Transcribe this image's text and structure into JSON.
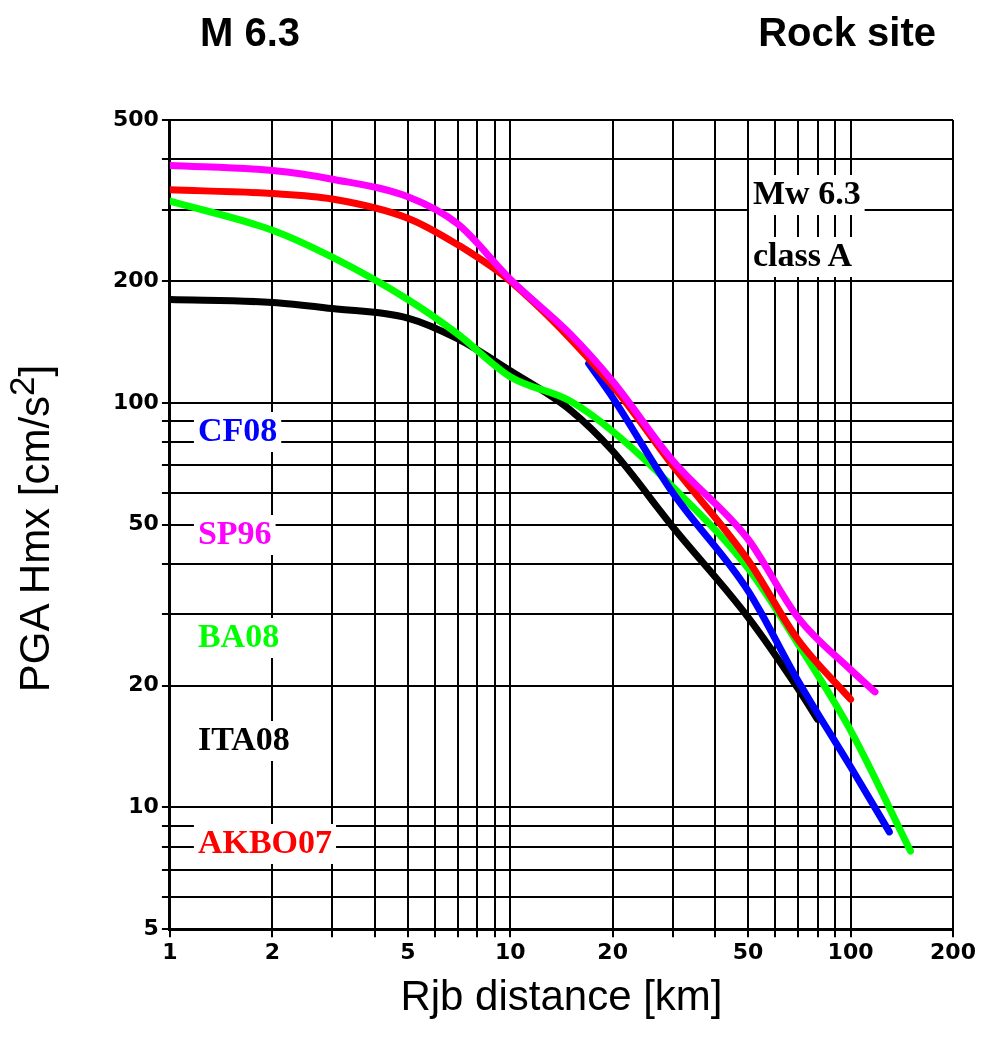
{
  "chart_data": {
    "type": "line",
    "title": "M 6.3",
    "subtitle": "Rock site",
    "xlabel": "Rjb distance [km]",
    "ylabel": "PGA Hmx [cm/s$^{2}$]",
    "log": "xy",
    "grid": true,
    "legend": false,
    "marker": "none",
    "line_style": "solid",
    "xlim": [
      1,
      200
    ],
    "ylim": [
      5,
      500
    ],
    "xticks": [
      1,
      2,
      {
        "value": 3,
        "label": null
      },
      {
        "value": 4,
        "label": null
      },
      5,
      {
        "value": 6,
        "label": null
      },
      {
        "value": 7,
        "label": null
      },
      {
        "value": 8,
        "label": null
      },
      {
        "value": 9,
        "label": null
      },
      10,
      20,
      {
        "value": 30,
        "label": null
      },
      {
        "value": 40,
        "label": null
      },
      50,
      {
        "value": 60,
        "label": null
      },
      {
        "value": 70,
        "label": null
      },
      {
        "value": 80,
        "label": null
      },
      {
        "value": 90,
        "label": null
      },
      100,
      200
    ],
    "yticks": [
      5,
      {
        "value": 6,
        "label": null
      },
      {
        "value": 7,
        "label": null
      },
      {
        "value": 8,
        "label": null
      },
      {
        "value": 9,
        "label": null
      },
      10,
      20,
      {
        "value": 30,
        "label": null
      },
      {
        "value": 40,
        "label": null
      },
      50,
      {
        "value": 60,
        "label": null
      },
      {
        "value": 70,
        "label": null
      },
      {
        "value": 80,
        "label": null
      },
      {
        "value": 90,
        "label": null
      },
      100,
      200,
      {
        "value": 300,
        "label": null
      },
      {
        "value": 400,
        "label": null
      },
      500
    ],
    "annotations": [
      "Mw 6.3",
      "class A"
    ],
    "series": [
      {
        "name": "CF08",
        "color": "#0000ff",
        "x": [
          17,
          20,
          30,
          50,
          70,
          100,
          130
        ],
        "values": [
          125,
          103,
          60,
          34.3,
          20.6,
          12.6,
          8.7
        ]
      },
      {
        "name": "SP96",
        "color": "#ff00ff",
        "x": [
          1,
          2,
          3,
          5,
          7,
          10,
          15,
          20,
          30,
          50,
          70,
          100,
          118
        ],
        "values": [
          386,
          375,
          357,
          323,
          277,
          202,
          148,
          113,
          72,
          46,
          29.5,
          21.9,
          19.3
        ]
      },
      {
        "name": "BA08",
        "color": "#00ff00",
        "x": [
          1,
          2,
          3,
          5,
          7,
          10,
          15,
          20,
          30,
          50,
          70,
          100,
          150
        ],
        "values": [
          315,
          267,
          229,
          180,
          148,
          116,
          101,
          85,
          62,
          39,
          25.4,
          15.5,
          7.8
        ]
      },
      {
        "name": "ITA08",
        "color": "#000000",
        "x": [
          1,
          2,
          3,
          5,
          7,
          10,
          15,
          20,
          30,
          50,
          70,
          80
        ],
        "values": [
          180,
          177,
          171,
          162,
          144,
          120,
          96,
          76,
          49.4,
          29.5,
          19.7,
          16.5
        ]
      },
      {
        "name": "AKBO07",
        "color": "#ff0000",
        "x": [
          1,
          2,
          3,
          5,
          7,
          10,
          20,
          30,
          50,
          70,
          100
        ],
        "values": [
          336,
          329,
          319,
          286,
          246,
          200,
          110,
          70,
          40.8,
          26,
          18.5
        ]
      }
    ]
  }
}
